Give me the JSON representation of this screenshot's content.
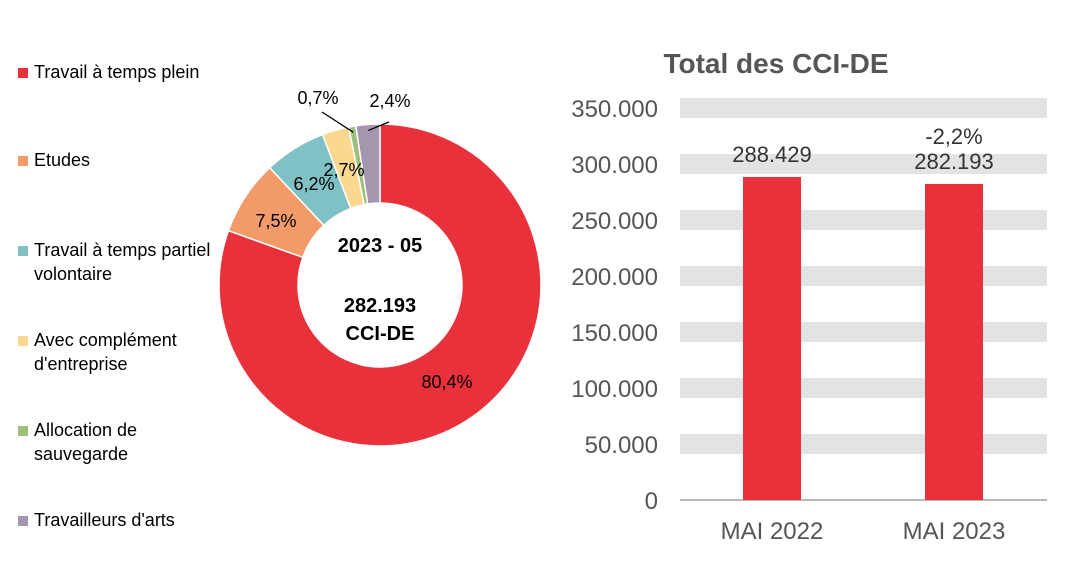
{
  "chart_data": [
    {
      "type": "pie",
      "center_text": [
        "2023 - 05",
        "282.193",
        "CCI-DE"
      ],
      "slices": [
        {
          "label": "Travail à temps plein",
          "value": 80.4,
          "value_label": "80,4%",
          "color": "#e8313a"
        },
        {
          "label": "Etudes",
          "value": 7.5,
          "value_label": "7,5%",
          "color": "#f29b68"
        },
        {
          "label": "Travail à temps partiel volontaire",
          "value": 6.2,
          "value_label": "6,2%",
          "color": "#7fc1c4"
        },
        {
          "label": "Avec complément d'entreprise",
          "value": 2.7,
          "value_label": "2,7%",
          "color": "#fbd88f"
        },
        {
          "label": "Allocation de sauvegarde",
          "value": 0.7,
          "value_label": "0,7%",
          "color": "#9ec07a"
        },
        {
          "label": "Travailleurs d'arts",
          "value": 2.4,
          "value_label": "2,4%",
          "color": "#a496ae"
        }
      ],
      "legend_position": "left"
    },
    {
      "type": "bar",
      "title": "Total des CCI-DE",
      "categories": [
        "MAI 2022",
        "MAI 2023"
      ],
      "values": [
        288429,
        282193
      ],
      "value_labels": [
        "288.429",
        "282.193"
      ],
      "change_labels": [
        "",
        "-2,2%"
      ],
      "ylim": [
        0,
        350000
      ],
      "yticks": [
        "0",
        "50.000",
        "100.000",
        "150.000",
        "200.000",
        "250.000",
        "300.000",
        "350.000"
      ],
      "grid": true,
      "bar_color": "#e8313a",
      "band_color": "#e3e3e3"
    }
  ]
}
